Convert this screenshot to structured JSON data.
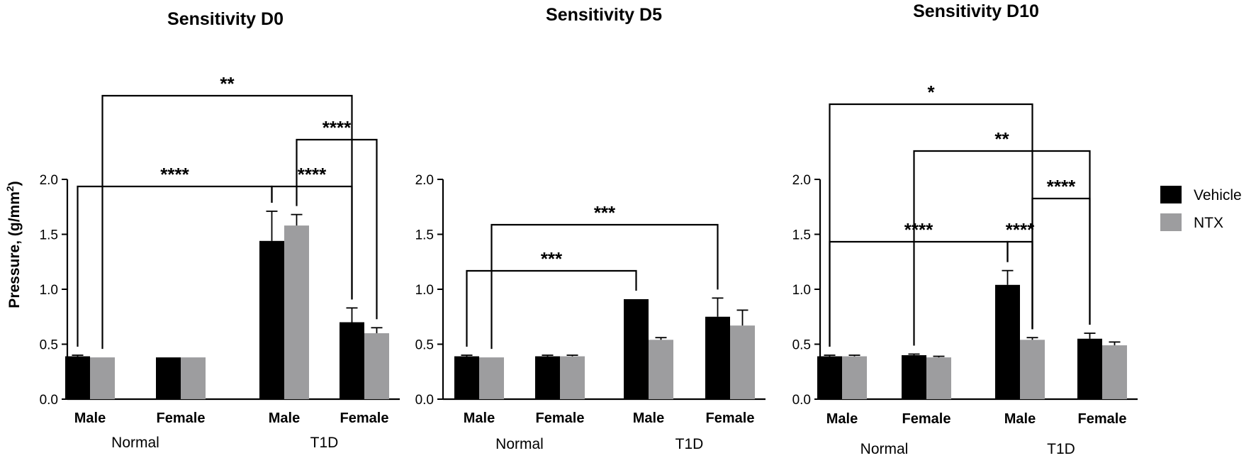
{
  "colors": {
    "vehicle": "#000000",
    "ntx": "#9d9d9f",
    "axis": "#000000"
  },
  "y_axis_label": "Pressure, (g/mm",
  "y_axis_label_sup": "2",
  "y_axis_label_end": ")",
  "legend": [
    {
      "name": "Vehicle",
      "color": "#000000"
    },
    {
      "name": "NTX",
      "color": "#9d9d9f"
    }
  ],
  "chart_data": [
    {
      "type": "bar",
      "title": "Sensitivity D0",
      "categories": [
        "Male",
        "Female",
        "Male",
        "Female"
      ],
      "groups": [
        {
          "label": "Normal",
          "categories": [
            0,
            1
          ]
        },
        {
          "label": "T1D",
          "categories": [
            2,
            3
          ]
        }
      ],
      "ylim": [
        0,
        2.0
      ],
      "yticks": [
        "0.0",
        "0.5",
        "1.0",
        "1.5",
        "2.0"
      ],
      "series": [
        {
          "name": "Vehicle",
          "values": [
            0.39,
            0.38,
            1.44,
            0.7
          ],
          "errors": [
            0.01,
            0,
            0.27,
            0.13
          ]
        },
        {
          "name": "NTX",
          "values": [
            0.38,
            0.38,
            1.58,
            0.6
          ],
          "errors": [
            0,
            0,
            0.1,
            0.05
          ]
        }
      ],
      "significance": [
        {
          "from": [
            0,
            0
          ],
          "to": [
            2,
            0
          ],
          "label": "****",
          "level": 1
        },
        {
          "from": [
            2,
            0
          ],
          "to": [
            3,
            0
          ],
          "label": "****",
          "level": 1
        },
        {
          "from": [
            2,
            1
          ],
          "to": [
            3,
            1
          ],
          "label": "****",
          "level": 2
        },
        {
          "from": [
            0,
            1
          ],
          "to": [
            3,
            0
          ],
          "label": "**",
          "level": 3
        }
      ]
    },
    {
      "type": "bar",
      "title": "Sensitivity D5",
      "categories": [
        "Male",
        "Female",
        "Male",
        "Female"
      ],
      "groups": [
        {
          "label": "Normal",
          "categories": [
            0,
            1
          ]
        },
        {
          "label": "T1D",
          "categories": [
            2,
            3
          ]
        }
      ],
      "ylim": [
        0,
        2.0
      ],
      "yticks": [
        "0.0",
        "0.5",
        "1.0",
        "1.5",
        "2.0"
      ],
      "series": [
        {
          "name": "Vehicle",
          "values": [
            0.39,
            0.39,
            0.91,
            0.75
          ],
          "errors": [
            0.01,
            0.01,
            0,
            0.17
          ]
        },
        {
          "name": "NTX",
          "values": [
            0.38,
            0.39,
            0.54,
            0.67
          ],
          "errors": [
            0,
            0.01,
            0.02,
            0.14
          ]
        }
      ],
      "significance": [
        {
          "from": [
            0,
            0
          ],
          "to": [
            2,
            0
          ],
          "label": "***",
          "level": 1
        },
        {
          "from": [
            0,
            1
          ],
          "to": [
            3,
            0
          ],
          "label": "***",
          "level": 2
        }
      ]
    },
    {
      "type": "bar",
      "title": "Sensitivity D10",
      "categories": [
        "Male",
        "Female",
        "Male",
        "Female"
      ],
      "groups": [
        {
          "label": "Normal",
          "categories": [
            0,
            1
          ]
        },
        {
          "label": "T1D",
          "categories": [
            2,
            3
          ]
        }
      ],
      "ylim": [
        0,
        2.0
      ],
      "yticks": [
        "0.0",
        "0.5",
        "1.0",
        "1.5",
        "2.0"
      ],
      "series": [
        {
          "name": "Vehicle",
          "values": [
            0.39,
            0.4,
            1.04,
            0.55
          ],
          "errors": [
            0.01,
            0.01,
            0.13,
            0.05
          ]
        },
        {
          "name": "NTX",
          "values": [
            0.39,
            0.38,
            0.54,
            0.49
          ],
          "errors": [
            0.01,
            0.01,
            0.02,
            0.03
          ]
        }
      ],
      "significance": [
        {
          "from": [
            0,
            0
          ],
          "to": [
            2,
            0
          ],
          "label": "****",
          "level": 1
        },
        {
          "from": [
            2,
            0
          ],
          "to": [
            2,
            1
          ],
          "label": "****",
          "level": 1
        },
        {
          "from": [
            2,
            1
          ],
          "to": [
            3,
            0
          ],
          "label": "****",
          "level": 2
        },
        {
          "from": [
            1,
            0
          ],
          "to": [
            3,
            0
          ],
          "label": "**",
          "level": 3
        },
        {
          "from": [
            0,
            0
          ],
          "to": [
            2,
            1
          ],
          "label": "*",
          "level": 4
        }
      ]
    }
  ]
}
